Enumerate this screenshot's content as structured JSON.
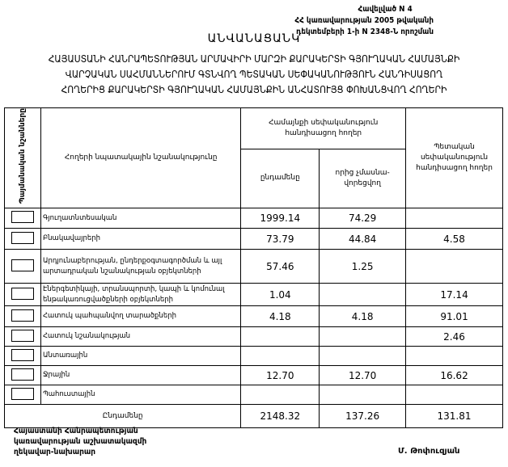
{
  "annex": {
    "line1": "Հավելված N 4",
    "line2": "ՀՀ կառավարության 2005 թվականի",
    "line3": "դեկտեմբերի 1-ի N 2348-Ն որոշման"
  },
  "title": "ԱՆՎԱՆԱՑԱՆԿ",
  "subtitle": [
    "ՀԱՅԱՍՏԱՆԻ ՀԱՆՐԱՊԵՏՈՒԹՅԱՆ ԱՐՄԱՎԻՐԻ ՄԱՐԶԻ ՔԱՐԱԿԵՐՏԻ ԳՅՈՒՂԱԿԱՆ ՀԱՄԱՅՆՔԻ",
    "ՎԱՐՉԱԿԱՆ ՍԱՀՄԱՆՆԵՐՈՒՄ ԳՏՆՎՈՂ ՊԵՏԱԿԱՆ ՍԵՓԱԿԱՆՈՒԹՅՈՒՆ ՀԱՆԴԻՍԱՑՈՂ",
    "ՀՈՂԵՐԻՑ ՔԱՐԱԿԵՐՏԻ ԳՅՈՒՂԱԿԱՆ ՀԱՄԱՅՆՔԻՆ ԱՆՀԱՏՈՒՅՑ ՓՈԽԱՆՑՎՈՂ ՀՈՂԵՐԻ"
  ],
  "table": {
    "headers": {
      "symbols": "Պայմանական նշանները",
      "purpose": "Հողերի նպատակային նշանակությունը",
      "community": "Համայնքի սեփականություն հանդիսացող հողեր",
      "total": "ընդամենը",
      "unprivatized": "որից չմասնա-վորեցվող",
      "state": "Պետական սեփականություն հանդիսացող հողեր"
    },
    "rows": [
      {
        "name": "Գյուղատնտեսական",
        "total": "1999.14",
        "unprivatized": "74.29",
        "state": ""
      },
      {
        "name": "Բնակավայրերի",
        "total": "73.79",
        "unprivatized": "44.84",
        "state": "4.58"
      },
      {
        "name": "Արդյունաբերության, ընդերքօգտագործման և այլ արտադրական նշանակության օբյեկտների",
        "total": "57.46",
        "unprivatized": "1.25",
        "state": ""
      },
      {
        "name": "Էներգետիկայի, տրանսպորտի, կապի և կոմունալ ենթակառուցվածքների օբյեկտների",
        "total": "1.04",
        "unprivatized": "",
        "state": "17.14"
      },
      {
        "name": "Հատուկ պահպանվող տարածքների",
        "total": "4.18",
        "unprivatized": "4.18",
        "state": "91.01"
      },
      {
        "name": "Հատուկ նշանակության",
        "total": "",
        "unprivatized": "",
        "state": "2.46"
      },
      {
        "name": "Անտառային",
        "total": "",
        "unprivatized": "",
        "state": ""
      },
      {
        "name": "Ջրային",
        "total": "12.70",
        "unprivatized": "12.70",
        "state": "16.62"
      },
      {
        "name": "Պահուստային",
        "total": "",
        "unprivatized": "",
        "state": ""
      }
    ],
    "footer": {
      "label": "Ընդամենը",
      "total": "2148.32",
      "unprivatized": "137.26",
      "state": "131.81"
    }
  },
  "signature": {
    "line1": "Հայաստանի Հանրապետության",
    "line2": "կառավարության աշխատակազմի",
    "line3": "ղեկավար-նախարար",
    "name": "Մ. Թոփուզյան"
  }
}
